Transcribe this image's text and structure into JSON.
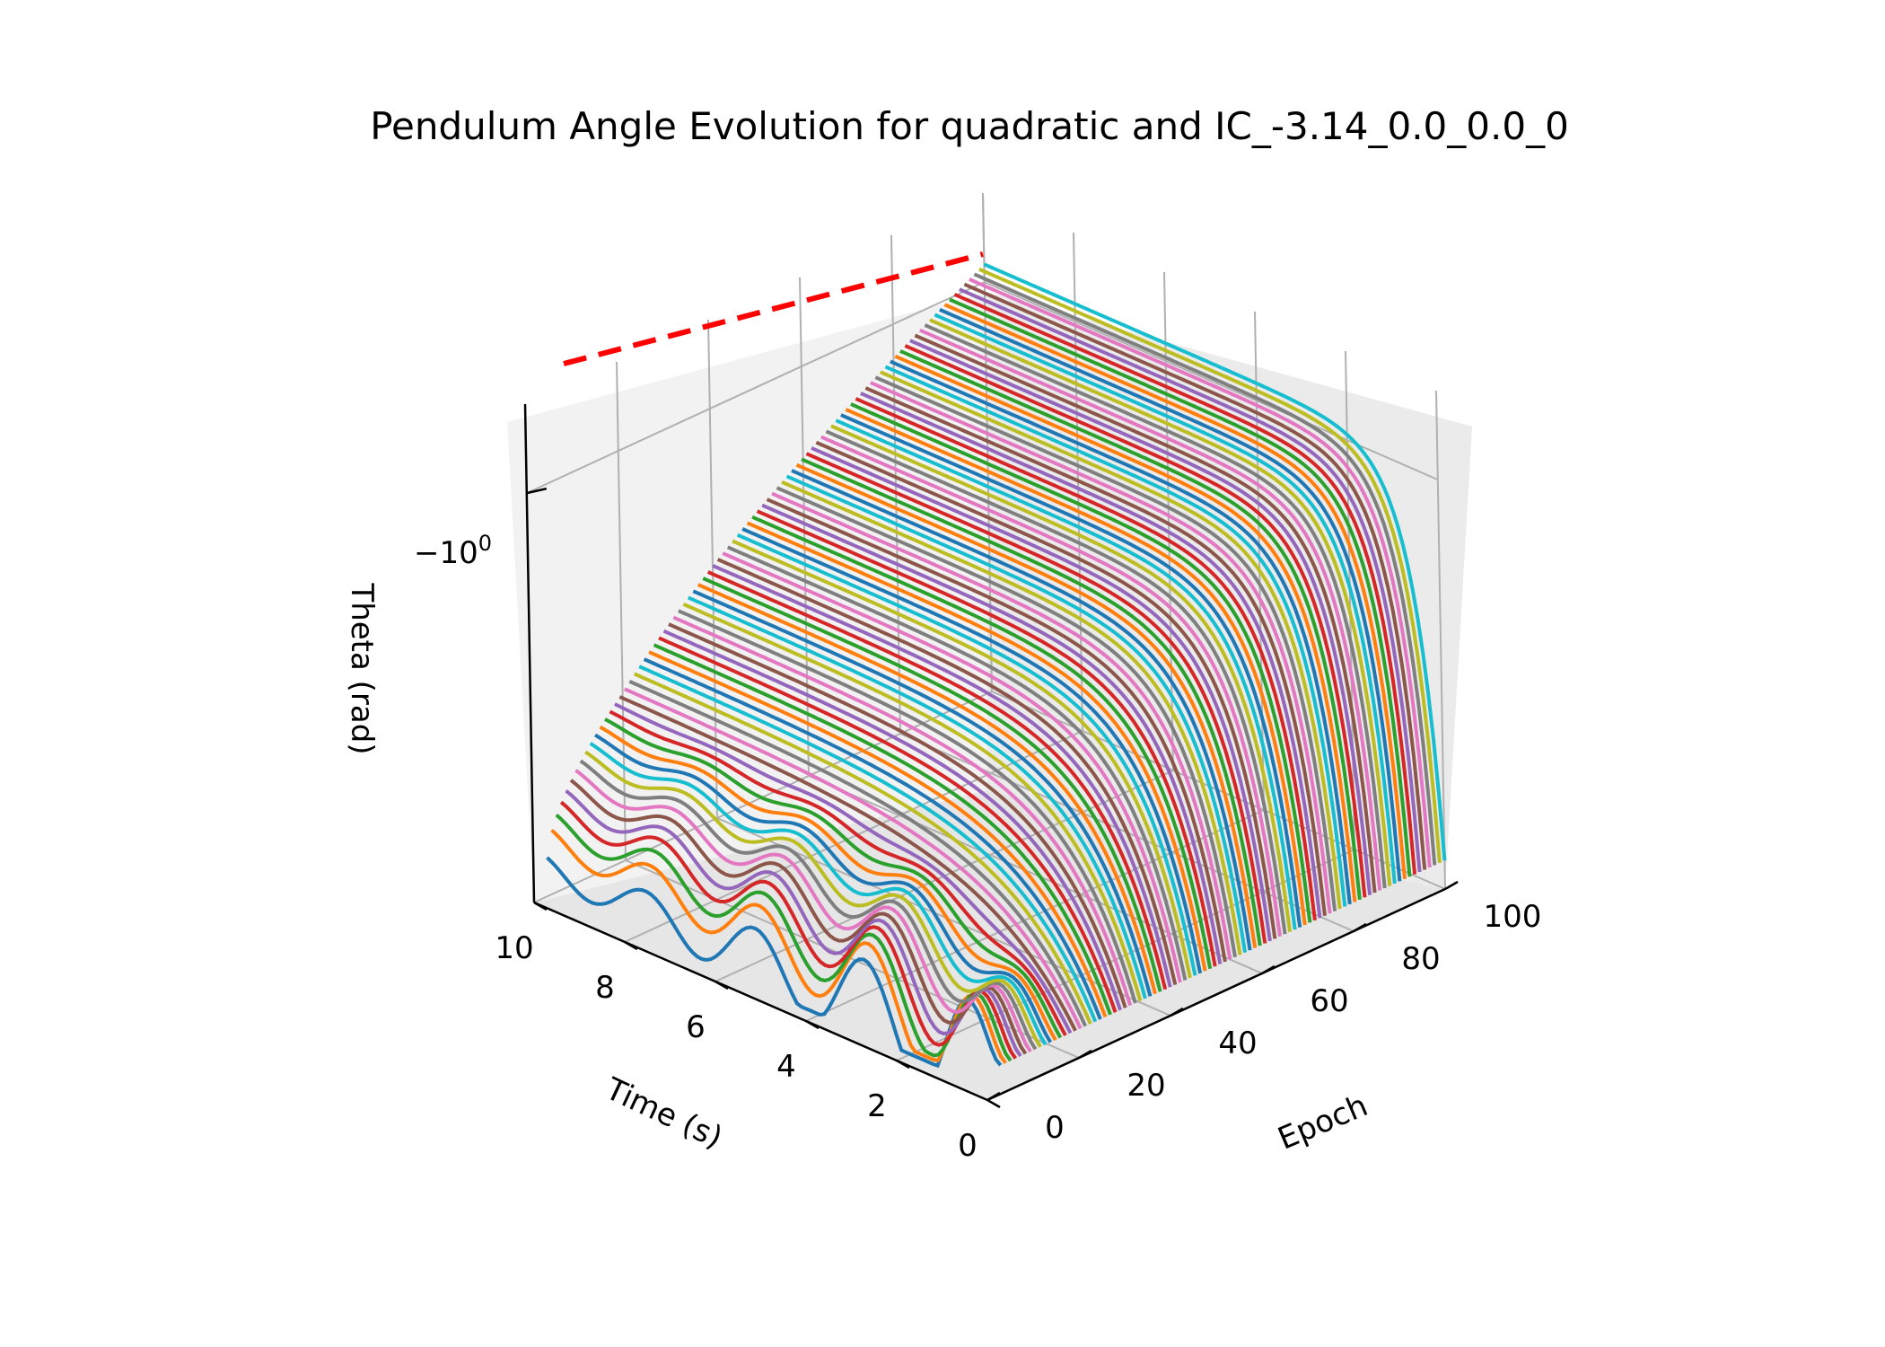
{
  "chart_data": {
    "type": "line",
    "title": "Pendulum Angle Evolution for quadratic and IC_-3.14_0.0_0.0_0",
    "xlabel": "Time (s)",
    "ylabel": "Epoch",
    "zlabel": "Theta (rad)",
    "x_ticks": [
      "0",
      "2",
      "4",
      "6",
      "8",
      "10"
    ],
    "y_ticks": [
      "0",
      "20",
      "40",
      "60",
      "80",
      "100"
    ],
    "z_ticks": [
      "−10"
    ],
    "z_tick_exponent": "0",
    "z_scale": "symlog",
    "xlim": [
      0,
      10
    ],
    "ylim": [
      0,
      100
    ],
    "grid": true,
    "series_summary": {
      "epochs_plotted": [
        0,
        100
      ],
      "initial_theta": -3.14,
      "final_theta_range": [
        -3.14,
        -0.9
      ]
    },
    "reference_line": {
      "style": "dashed",
      "color": "#ff0000",
      "theta": -0.6
    },
    "colors": [
      "#1f77b4",
      "#ff7f0e",
      "#2ca02c",
      "#d62728",
      "#9467bd",
      "#8c564b",
      "#e377c2",
      "#7f7f7f",
      "#bcbd22",
      "#17becf"
    ]
  }
}
